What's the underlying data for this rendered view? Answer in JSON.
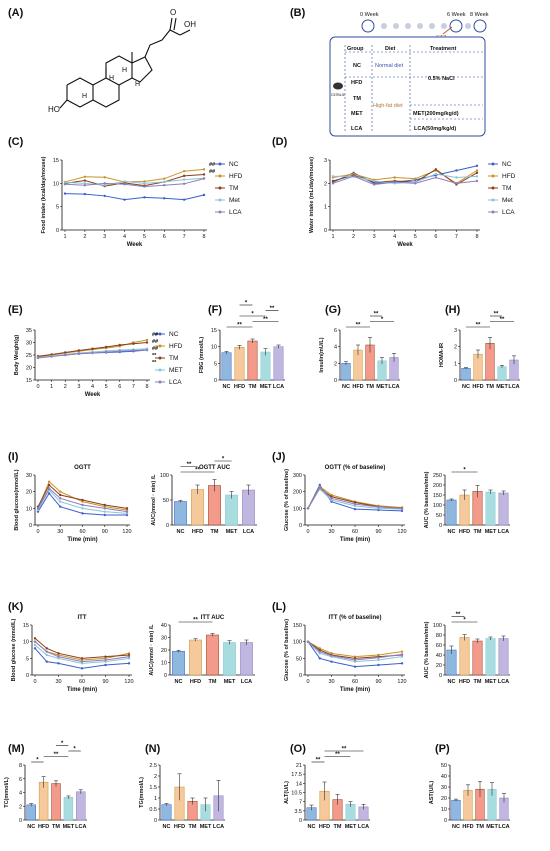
{
  "colors": {
    "NC": "#3b5fcc",
    "HFD": "#c9932a",
    "TM": "#8b3d1a",
    "MET": "#8ac4d6",
    "LCA": "#8c7fbd",
    "NC_fill": "#8fb8de",
    "HFD_fill": "#f5c99b",
    "TM_fill": "#f49a8a",
    "MET_fill": "#a8dde0",
    "LCA_fill": "#c0b6e0"
  },
  "panels": {
    "A": "(A)",
    "B": "(B)",
    "C": "(C)",
    "D": "(D)",
    "E": "(E)",
    "F": "(F)",
    "G": "(G)",
    "H": "(H)",
    "I": "(I)",
    "J": "(J)",
    "K": "(K)",
    "L": "(L)",
    "M": "(M)",
    "N": "(N)",
    "O": "(O)",
    "P": "(P)"
  },
  "structure": {
    "ring_labels": [
      "H",
      "H",
      "H",
      "H"
    ],
    "ho": "HO",
    "oh": "OH",
    "o": "O"
  },
  "design": {
    "weeks": [
      "0 Week",
      "6 Week",
      "8 Week"
    ],
    "stz": "STZ",
    "headers": [
      "Group",
      "Diet",
      "Treatment"
    ],
    "groups": [
      "NC",
      "HFD",
      "TM",
      "MET",
      "LCA"
    ],
    "normal_diet": "Normal diet",
    "high_fat_diet": "High-fat diet",
    "saline": "0.5% NaCl",
    "met_treat": "MET(200mg/kg/d)",
    "lca_treat": "LCA(50mg/kg/d)",
    "mouse_label": "C57BL/6"
  },
  "legend_names": [
    "NC",
    "HFD",
    "TM",
    "Met",
    "LCA"
  ],
  "legend_names_E": [
    "NC",
    "HFD",
    "TM",
    "MET",
    "LCA"
  ],
  "chart_data": [
    {
      "panel": "C",
      "type": "line",
      "ylabel": "Food intake (kcal/day/mouse)",
      "xlabel": "Week",
      "x": [
        1,
        2,
        3,
        4,
        5,
        6,
        7,
        8
      ],
      "ylim": [
        0,
        15
      ],
      "yticks": [
        0,
        5,
        10,
        15
      ],
      "series": [
        {
          "name": "NC",
          "values": [
            7.8,
            7.7,
            7.3,
            6.5,
            7.0,
            6.8,
            6.5,
            7.5
          ]
        },
        {
          "name": "HFD",
          "values": [
            10.3,
            11.4,
            11.3,
            10.3,
            10.4,
            11.0,
            12.6,
            13.0
          ]
        },
        {
          "name": "TM",
          "values": [
            10.0,
            10.6,
            9.4,
            10.1,
            9.5,
            10.3,
            11.6,
            11.9
          ]
        },
        {
          "name": "Met",
          "values": [
            10.2,
            10.0,
            9.6,
            10.4,
            10.0,
            10.3,
            10.8,
            11.1
          ]
        },
        {
          "name": "LCA",
          "values": [
            9.8,
            9.6,
            10.0,
            9.8,
            9.3,
            9.6,
            9.9,
            11.0
          ]
        }
      ],
      "annotations": [
        "##",
        "##"
      ]
    },
    {
      "panel": "D",
      "type": "line",
      "ylabel": "Water intake (mL/day/mouse)",
      "xlabel": "Week",
      "x": [
        1,
        2,
        3,
        4,
        5,
        6,
        7,
        8
      ],
      "ylim": [
        0,
        3
      ],
      "yticks": [
        0,
        1,
        2,
        3
      ],
      "series": [
        {
          "name": "NC",
          "values": [
            2.05,
            2.45,
            2.0,
            2.05,
            2.15,
            2.35,
            2.55,
            2.75
          ]
        },
        {
          "name": "HFD",
          "values": [
            2.25,
            2.4,
            2.15,
            2.25,
            2.2,
            2.55,
            2.0,
            2.55
          ]
        },
        {
          "name": "TM",
          "values": [
            2.1,
            2.35,
            2.05,
            2.1,
            2.05,
            2.6,
            1.95,
            2.45
          ]
        },
        {
          "name": "Met",
          "values": [
            2.3,
            2.3,
            2.1,
            2.0,
            2.05,
            2.4,
            2.25,
            2.3
          ]
        },
        {
          "name": "LCA",
          "values": [
            2.0,
            2.3,
            1.95,
            2.05,
            2.0,
            2.25,
            2.0,
            2.1
          ]
        }
      ]
    },
    {
      "panel": "E",
      "type": "line",
      "ylabel": "Body Weight(g)",
      "xlabel": "Week",
      "x": [
        0,
        1,
        2,
        3,
        4,
        5,
        6,
        7,
        8
      ],
      "ylim": [
        15,
        35
      ],
      "yticks": [
        15,
        20,
        25,
        30,
        35
      ],
      "series": [
        {
          "name": "NC",
          "values": [
            24,
            24.5,
            25,
            25.5,
            25.8,
            26,
            26.2,
            26.5,
            27
          ]
        },
        {
          "name": "HFD",
          "values": [
            24.2,
            25,
            25.8,
            26.5,
            27.2,
            27.8,
            28.5,
            30,
            31
          ]
        },
        {
          "name": "TM",
          "values": [
            24.5,
            25.2,
            26,
            26.8,
            27.5,
            28.2,
            29,
            29.5,
            30
          ]
        },
        {
          "name": "MET",
          "values": [
            24,
            24.6,
            25.2,
            25.8,
            26.2,
            26.6,
            27,
            27.2,
            27.5
          ]
        },
        {
          "name": "LCA",
          "values": [
            23.8,
            24.4,
            25,
            25.5,
            25.8,
            26.2,
            26.5,
            26.8,
            27
          ]
        }
      ],
      "annotations": [
        "##",
        "##",
        "##",
        "**",
        "**"
      ]
    },
    {
      "panel": "F",
      "type": "bar",
      "ylabel": "FBG (mmol/L)",
      "categories": [
        "NC",
        "HFD",
        "TM",
        "MET",
        "LCA"
      ],
      "values": [
        8.2,
        9.8,
        11.7,
        8.4,
        10.0
      ],
      "errors": [
        0.4,
        0.6,
        0.6,
        1.0,
        0.5
      ],
      "ylim": [
        0,
        15
      ],
      "yticks": [
        0,
        5,
        10,
        15
      ],
      "brackets": [
        [
          0,
          2,
          "**"
        ],
        [
          2,
          4,
          "**"
        ],
        [
          1,
          3,
          "*"
        ],
        [
          3,
          4,
          "**"
        ],
        [
          1,
          2,
          "*"
        ]
      ]
    },
    {
      "panel": "G",
      "type": "bar",
      "ylabel": "Insulin(mU/L)",
      "categories": [
        "NC",
        "HFD",
        "TM",
        "MET",
        "LCA"
      ],
      "values": [
        2.0,
        3.6,
        4.2,
        2.3,
        2.7
      ],
      "errors": [
        0.2,
        0.6,
        0.9,
        0.4,
        0.5
      ],
      "ylim": [
        0,
        6
      ],
      "yticks": [
        0,
        2,
        4,
        6
      ],
      "brackets": [
        [
          0,
          2,
          "**"
        ],
        [
          2,
          4,
          "*"
        ],
        [
          2,
          3,
          "**"
        ]
      ]
    },
    {
      "panel": "H",
      "type": "bar",
      "ylabel": "HOMA-IR",
      "categories": [
        "NC",
        "HFD",
        "TM",
        "MET",
        "LCA"
      ],
      "values": [
        0.7,
        1.55,
        2.2,
        0.8,
        1.2
      ],
      "errors": [
        0.05,
        0.25,
        0.35,
        0.08,
        0.25
      ],
      "ylim": [
        0,
        3
      ],
      "yticks": [
        0,
        1,
        2,
        3
      ],
      "brackets": [
        [
          0,
          2,
          "**"
        ],
        [
          2,
          4,
          "**"
        ],
        [
          2,
          3,
          "**"
        ]
      ]
    },
    {
      "panel": "I",
      "type": "line",
      "title": "OGTT",
      "ylabel": "Blood glucose(mmol/L)",
      "xlabel": "Time (min)",
      "x": [
        0,
        15,
        30,
        60,
        90,
        120
      ],
      "ylim": [
        0,
        30
      ],
      "yticks": [
        0,
        10,
        20,
        30
      ],
      "xticks": [
        0,
        30,
        60,
        90,
        120
      ],
      "series": [
        {
          "name": "NC",
          "values": [
            8,
            19,
            11,
            7,
            6,
            6
          ]
        },
        {
          "name": "HFD",
          "values": [
            10,
            26,
            20,
            14,
            11,
            9
          ]
        },
        {
          "name": "TM",
          "values": [
            11,
            24,
            18,
            15,
            12,
            10
          ]
        },
        {
          "name": "MET",
          "values": [
            9,
            21,
            14,
            10,
            8,
            7
          ]
        },
        {
          "name": "LCA",
          "values": [
            10,
            22,
            16,
            12,
            10,
            8
          ]
        }
      ]
    },
    {
      "panel": "I",
      "type": "bar",
      "title": "OGTT AUC",
      "ylabel": "AUC(mmol · min) /L",
      "categories": [
        "NC",
        "HFD",
        "TM",
        "MET",
        "LCA"
      ],
      "values": [
        47,
        71,
        79,
        60,
        70
      ],
      "errors": [
        2,
        9,
        12,
        7,
        10
      ],
      "ylim": [
        0,
        100
      ],
      "yticks": [
        0,
        50,
        100
      ],
      "brackets": [
        [
          0,
          2,
          "**"
        ],
        [
          0,
          1,
          "**"
        ],
        [
          2,
          3,
          "*"
        ]
      ]
    },
    {
      "panel": "J",
      "type": "line",
      "title": "OGTT (% of baseline)",
      "ylabel": "Glucose (% of baseline)",
      "xlabel": "Time (min)",
      "x": [
        0,
        15,
        30,
        60,
        90,
        120
      ],
      "ylim": [
        0,
        300
      ],
      "yticks": [
        0,
        100,
        200,
        300
      ],
      "xticks": [
        0,
        30,
        60,
        90,
        120
      ],
      "series": [
        {
          "name": "NC",
          "values": [
            100,
            240,
            140,
            95,
            90,
            85
          ]
        },
        {
          "name": "HFD",
          "values": [
            100,
            230,
            180,
            140,
            115,
            105
          ]
        },
        {
          "name": "TM",
          "values": [
            100,
            220,
            170,
            135,
            110,
            100
          ]
        },
        {
          "name": "MET",
          "values": [
            100,
            215,
            150,
            115,
            100,
            95
          ]
        },
        {
          "name": "LCA",
          "values": [
            100,
            225,
            160,
            125,
            108,
            98
          ]
        }
      ]
    },
    {
      "panel": "J",
      "type": "bar",
      "ylabel": "AUC (% baseline/min)",
      "categories": [
        "NC",
        "HFD",
        "TM",
        "MET",
        "LCA"
      ],
      "values": [
        125,
        150,
        168,
        165,
        160
      ],
      "errors": [
        5,
        25,
        30,
        10,
        10
      ],
      "ylim": [
        0,
        250
      ],
      "yticks": [
        0,
        50,
        100,
        150,
        200,
        250
      ],
      "brackets": [
        [
          0,
          2,
          "*"
        ]
      ]
    },
    {
      "panel": "K",
      "type": "line",
      "title": "ITT",
      "ylabel": "Blood glucose (mmol/L)",
      "xlabel": "Time (min)",
      "x": [
        0,
        15,
        30,
        60,
        90,
        120
      ],
      "ylim": [
        0,
        15
      ],
      "yticks": [
        0,
        5,
        10,
        15
      ],
      "xticks": [
        0,
        30,
        60,
        90,
        120
      ],
      "series": [
        {
          "name": "NC",
          "values": [
            8,
            4,
            3.5,
            2,
            3,
            3.5
          ]
        },
        {
          "name": "HFD",
          "values": [
            10,
            7,
            6,
            4.5,
            5,
            6.5
          ]
        },
        {
          "name": "TM",
          "values": [
            11,
            8,
            6.5,
            5,
            5.5,
            6
          ]
        },
        {
          "name": "MET",
          "values": [
            9,
            6,
            5,
            3.5,
            4,
            5
          ]
        },
        {
          "name": "LCA",
          "values": [
            10,
            7,
            5.5,
            4,
            4.5,
            5.5
          ]
        }
      ]
    },
    {
      "panel": "K",
      "type": "bar",
      "title": "ITT AUC",
      "ylabel": "AUC(mmol · min) /L",
      "categories": [
        "NC",
        "HFD",
        "TM",
        "MET",
        "LCA"
      ],
      "values": [
        19,
        28,
        32,
        26,
        26
      ],
      "errors": [
        0.8,
        1,
        1.2,
        1.5,
        2
      ],
      "ylim": [
        0,
        40
      ],
      "yticks": [
        0,
        10,
        20,
        30,
        40
      ],
      "brackets": [
        [
          0,
          2,
          "**"
        ]
      ]
    },
    {
      "panel": "L",
      "type": "line",
      "title": "ITT (% of baseline)",
      "ylabel": "Glucose (% of baseline)",
      "xlabel": "Time (min)",
      "x": [
        0,
        15,
        30,
        60,
        90,
        120
      ],
      "ylim": [
        0,
        150
      ],
      "yticks": [
        0,
        50,
        100,
        150
      ],
      "xticks": [
        0,
        30,
        60,
        90,
        120
      ],
      "series": [
        {
          "name": "NC",
          "values": [
            100,
            50,
            40,
            25,
            30,
            35
          ]
        },
        {
          "name": "HFD",
          "values": [
            100,
            80,
            65,
            55,
            60,
            70
          ]
        },
        {
          "name": "TM",
          "values": [
            100,
            75,
            60,
            50,
            55,
            60
          ]
        },
        {
          "name": "MET",
          "values": [
            100,
            65,
            55,
            40,
            45,
            55
          ]
        },
        {
          "name": "LCA",
          "values": [
            100,
            70,
            58,
            45,
            52,
            62
          ]
        }
      ]
    },
    {
      "panel": "L",
      "type": "bar",
      "ylabel": "AUC (% baseline/min)",
      "categories": [
        "NC",
        "HFD",
        "TM",
        "MET",
        "LCA"
      ],
      "values": [
        50,
        75,
        68,
        73,
        73
      ],
      "errors": [
        8,
        6,
        4,
        3,
        5
      ],
      "ylim": [
        0,
        100
      ],
      "yticks": [
        0,
        20,
        40,
        60,
        80,
        100
      ],
      "brackets": [
        [
          0,
          2,
          "*"
        ],
        [
          0,
          1,
          "**"
        ]
      ]
    },
    {
      "panel": "M",
      "type": "bar",
      "ylabel": "TC(mmol/L)",
      "categories": [
        "NC",
        "HFD",
        "TM",
        "MET",
        "LCA"
      ],
      "values": [
        2.2,
        5.5,
        5.3,
        3.3,
        4.1
      ],
      "errors": [
        0.2,
        0.8,
        0.4,
        0.2,
        0.3
      ],
      "ylim": [
        0,
        8
      ],
      "yticks": [
        0,
        2,
        4,
        6,
        8
      ],
      "brackets": [
        [
          0,
          1,
          "*"
        ],
        [
          1,
          3,
          "**"
        ],
        [
          3,
          4,
          "*"
        ],
        [
          2,
          3,
          "*"
        ]
      ]
    },
    {
      "panel": "N",
      "type": "bar",
      "ylabel": "TG(mmol/L)",
      "categories": [
        "NC",
        "HFD",
        "TM",
        "MET",
        "LCA"
      ],
      "values": [
        0.7,
        1.5,
        0.85,
        0.7,
        1.1
      ],
      "errors": [
        0.05,
        0.6,
        0.15,
        0.3,
        0.7
      ],
      "ylim": [
        0,
        2.5
      ],
      "yticks": [
        0.0,
        0.5,
        1.0,
        1.5,
        2.0,
        2.5
      ]
    },
    {
      "panel": "O",
      "type": "bar",
      "ylabel": "ALT(U/L)",
      "categories": [
        "NC",
        "HFD",
        "TM",
        "MET",
        "LCA"
      ],
      "values": [
        4.7,
        11,
        7.8,
        6,
        5
      ],
      "errors": [
        1,
        3.5,
        2,
        1,
        1
      ],
      "ylim": [
        0,
        21
      ],
      "yticks": [
        0.0,
        3.5,
        7.0,
        10.5,
        14.0,
        17.5,
        21.0
      ],
      "brackets": [
        [
          0,
          1,
          "**"
        ],
        [
          1,
          3,
          "**"
        ],
        [
          1,
          4,
          "**"
        ]
      ]
    },
    {
      "panel": "P",
      "type": "bar",
      "ylabel": "AST(U/L)",
      "categories": [
        "NC",
        "HFD",
        "TM",
        "MET",
        "LCA"
      ],
      "values": [
        18,
        27,
        28,
        28,
        20
      ],
      "errors": [
        1,
        5,
        7,
        6,
        4
      ],
      "ylim": [
        0,
        50
      ],
      "yticks": [
        0,
        10,
        20,
        30,
        40,
        50
      ]
    }
  ]
}
